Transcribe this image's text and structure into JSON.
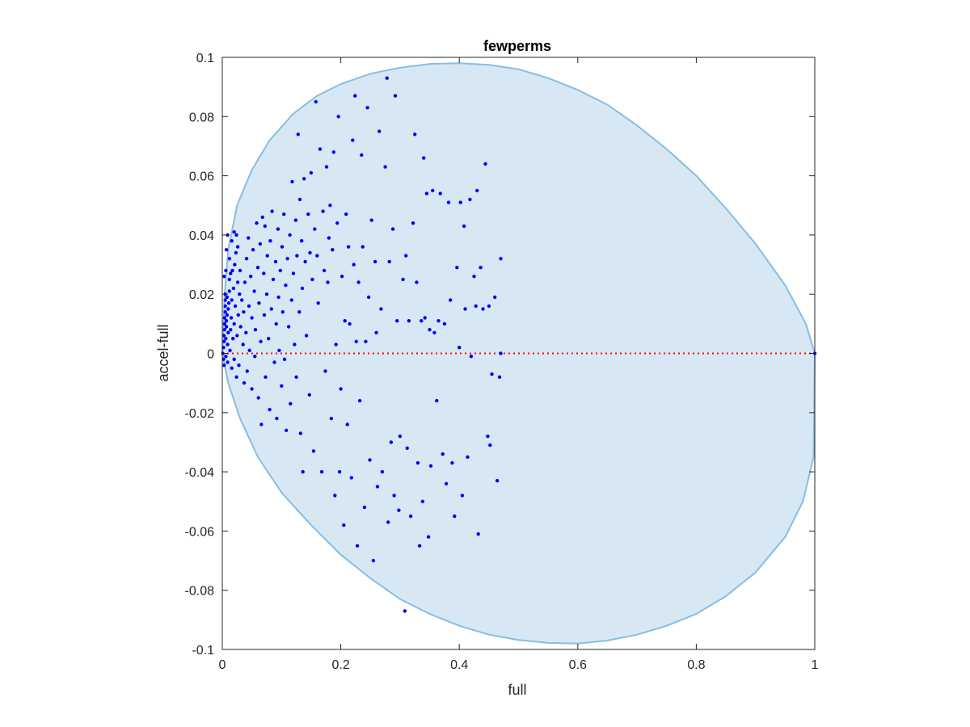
{
  "chart_data": {
    "type": "scatter",
    "title": "fewperms",
    "xlabel": "full",
    "ylabel": "accel-full",
    "xlim": [
      0,
      1
    ],
    "ylim": [
      -0.1,
      0.1
    ],
    "xticks": [
      0,
      0.2,
      0.4,
      0.6,
      0.8,
      1
    ],
    "xtick_labels": [
      "0",
      "0.2",
      "0.4",
      "0.6",
      "0.8",
      "1"
    ],
    "yticks": [
      -0.1,
      -0.08,
      -0.06,
      -0.04,
      -0.02,
      0,
      0.02,
      0.04,
      0.06,
      0.08,
      0.1
    ],
    "ytick_labels": [
      "-0.1",
      "-0.08",
      "-0.06",
      "-0.04",
      "-0.02",
      "0",
      "0.02",
      "0.04",
      "0.06",
      "0.08",
      "0.1"
    ],
    "grid": false,
    "colors": {
      "points": "#0000ff",
      "region_fill": "#d7e8f4",
      "region_edge": "#87bde2",
      "reference_line": "#ff0000",
      "axes": "#262626"
    },
    "reference_line": {
      "y": 0,
      "style": "dotted"
    },
    "region_boundary": [
      [
        0.0,
        0.0
      ],
      [
        0.004,
        0.02
      ],
      [
        0.01,
        0.035
      ],
      [
        0.025,
        0.05
      ],
      [
        0.05,
        0.062
      ],
      [
        0.08,
        0.072
      ],
      [
        0.12,
        0.081
      ],
      [
        0.16,
        0.087
      ],
      [
        0.2,
        0.091
      ],
      [
        0.25,
        0.0945
      ],
      [
        0.3,
        0.0965
      ],
      [
        0.35,
        0.0978
      ],
      [
        0.4,
        0.098
      ],
      [
        0.45,
        0.0975
      ],
      [
        0.5,
        0.096
      ],
      [
        0.55,
        0.093
      ],
      [
        0.6,
        0.089
      ],
      [
        0.65,
        0.084
      ],
      [
        0.7,
        0.077
      ],
      [
        0.75,
        0.069
      ],
      [
        0.8,
        0.06
      ],
      [
        0.85,
        0.049
      ],
      [
        0.9,
        0.037
      ],
      [
        0.95,
        0.023
      ],
      [
        0.985,
        0.01
      ],
      [
        1.0,
        0.0
      ],
      [
        0.998,
        -0.035
      ],
      [
        0.98,
        -0.05
      ],
      [
        0.95,
        -0.062
      ],
      [
        0.9,
        -0.074
      ],
      [
        0.85,
        -0.082
      ],
      [
        0.8,
        -0.088
      ],
      [
        0.75,
        -0.092
      ],
      [
        0.7,
        -0.095
      ],
      [
        0.65,
        -0.097
      ],
      [
        0.6,
        -0.098
      ],
      [
        0.55,
        -0.0978
      ],
      [
        0.5,
        -0.0968
      ],
      [
        0.45,
        -0.095
      ],
      [
        0.4,
        -0.092
      ],
      [
        0.35,
        -0.088
      ],
      [
        0.3,
        -0.083
      ],
      [
        0.25,
        -0.076
      ],
      [
        0.2,
        -0.068
      ],
      [
        0.15,
        -0.058
      ],
      [
        0.1,
        -0.047
      ],
      [
        0.06,
        -0.035
      ],
      [
        0.03,
        -0.022
      ],
      [
        0.01,
        -0.01
      ],
      [
        0.0,
        0.0
      ]
    ],
    "series": [
      {
        "points": [
          [
            0.001,
            0.0
          ],
          [
            0.002,
            0.002
          ],
          [
            0.002,
            -0.002
          ],
          [
            0.003,
            0.004
          ],
          [
            0.003,
            -0.004
          ],
          [
            0.003,
            0.006
          ],
          [
            0.004,
            0.008
          ],
          [
            0.004,
            0.01
          ],
          [
            0.004,
            0.012
          ],
          [
            0.005,
            0.014
          ],
          [
            0.005,
            0.016
          ],
          [
            0.005,
            0.018
          ],
          [
            0.005,
            0.02
          ],
          [
            0.006,
            0.005
          ],
          [
            0.006,
            -0.001
          ],
          [
            0.007,
            0.009
          ],
          [
            0.007,
            0.011
          ],
          [
            0.008,
            0.013
          ],
          [
            0.008,
            0.019
          ],
          [
            0.009,
            0.003
          ],
          [
            0.009,
            -0.003
          ],
          [
            0.01,
            0.007
          ],
          [
            0.01,
            0.015
          ],
          [
            0.011,
            0.017
          ],
          [
            0.012,
            0.021
          ],
          [
            0.012,
            0.025
          ],
          [
            0.013,
            0.001
          ],
          [
            0.014,
            0.008
          ],
          [
            0.015,
            0.012
          ],
          [
            0.016,
            -0.005
          ],
          [
            0.016,
            0.018
          ],
          [
            0.017,
            0.028
          ],
          [
            0.018,
            0.005
          ],
          [
            0.019,
            0.022
          ],
          [
            0.02,
            0.01
          ],
          [
            0.02,
            -0.002
          ],
          [
            0.021,
            0.03
          ],
          [
            0.022,
            0.016
          ],
          [
            0.023,
            0.034
          ],
          [
            0.024,
            -0.008
          ],
          [
            0.025,
            0.006
          ],
          [
            0.026,
            0.024
          ],
          [
            0.027,
            0.013
          ],
          [
            0.028,
            -0.004
          ],
          [
            0.029,
            0.02
          ],
          [
            0.003,
            0.026
          ],
          [
            0.006,
            0.028
          ],
          [
            0.007,
            0.035
          ],
          [
            0.009,
            0.04
          ],
          [
            0.012,
            0.032
          ],
          [
            0.014,
            0.027
          ],
          [
            0.016,
            0.038
          ],
          [
            0.02,
            0.041
          ],
          [
            0.024,
            0.04
          ],
          [
            0.026,
            0.036
          ],
          [
            0.03,
            0.028
          ],
          [
            0.031,
            0.009
          ],
          [
            0.033,
            0.018
          ],
          [
            0.035,
            0.003
          ],
          [
            0.036,
            0.014
          ],
          [
            0.037,
            -0.01
          ],
          [
            0.038,
            0.024
          ],
          [
            0.04,
            0.007
          ],
          [
            0.041,
            0.032
          ],
          [
            0.042,
            -0.006
          ],
          [
            0.044,
            0.039
          ],
          [
            0.045,
            0.016
          ],
          [
            0.046,
            0.001
          ],
          [
            0.048,
            0.026
          ],
          [
            0.05,
            -0.012
          ],
          [
            0.05,
            0.012
          ],
          [
            0.052,
            0.035
          ],
          [
            0.054,
            0.021
          ],
          [
            0.055,
            -0.001
          ],
          [
            0.056,
            0.008
          ],
          [
            0.058,
            0.044
          ],
          [
            0.06,
            0.029
          ],
          [
            0.061,
            -0.015
          ],
          [
            0.062,
            0.017
          ],
          [
            0.064,
            0.037
          ],
          [
            0.065,
            0.004
          ],
          [
            0.066,
            -0.024
          ],
          [
            0.068,
            0.046
          ],
          [
            0.07,
            0.027
          ],
          [
            0.071,
            0.013
          ],
          [
            0.072,
            0.043
          ],
          [
            0.073,
            -0.008
          ],
          [
            0.075,
            0.02
          ],
          [
            0.076,
            0.033
          ],
          [
            0.078,
            0.005
          ],
          [
            0.08,
            -0.019
          ],
          [
            0.081,
            0.038
          ],
          [
            0.083,
            0.015
          ],
          [
            0.084,
            0.048
          ],
          [
            0.086,
            0.025
          ],
          [
            0.088,
            -0.003
          ],
          [
            0.09,
            0.031
          ],
          [
            0.091,
            0.01
          ],
          [
            0.092,
            -0.022
          ],
          [
            0.094,
            0.042
          ],
          [
            0.095,
            0.019
          ],
          [
            0.096,
            0.001
          ],
          [
            0.098,
            0.028
          ],
          [
            0.1,
            -0.011
          ],
          [
            0.101,
            0.036
          ],
          [
            0.102,
            0.014
          ],
          [
            0.104,
            0.047
          ],
          [
            0.105,
            -0.002
          ],
          [
            0.107,
            0.023
          ],
          [
            0.108,
            -0.026
          ],
          [
            0.11,
            0.032
          ],
          [
            0.112,
            0.009
          ],
          [
            0.114,
            0.04
          ],
          [
            0.115,
            -0.017
          ],
          [
            0.117,
            0.018
          ],
          [
            0.118,
            0.058
          ],
          [
            0.12,
            0.027
          ],
          [
            0.122,
            0.003
          ],
          [
            0.124,
            0.045
          ],
          [
            0.125,
            -0.008
          ],
          [
            0.126,
            0.033
          ],
          [
            0.128,
            0.074
          ],
          [
            0.13,
            0.014
          ],
          [
            0.131,
            0.052
          ],
          [
            0.132,
            -0.027
          ],
          [
            0.134,
            0.038
          ],
          [
            0.135,
            0.022
          ],
          [
            0.136,
            -0.04
          ],
          [
            0.138,
            0.059
          ],
          [
            0.14,
            0.031
          ],
          [
            0.142,
            0.006
          ],
          [
            0.145,
            0.047
          ],
          [
            0.147,
            -0.014
          ],
          [
            0.148,
            0.034
          ],
          [
            0.15,
            0.061
          ],
          [
            0.152,
            0.025
          ],
          [
            0.154,
            -0.033
          ],
          [
            0.156,
            0.042
          ],
          [
            0.158,
            0.085
          ],
          [
            0.16,
            0.033
          ],
          [
            0.162,
            0.017
          ],
          [
            0.165,
            0.069
          ],
          [
            0.168,
            -0.04
          ],
          [
            0.17,
            0.048
          ],
          [
            0.172,
            0.028
          ],
          [
            0.174,
            -0.006
          ],
          [
            0.176,
            0.063
          ],
          [
            0.178,
            0.024
          ],
          [
            0.18,
            0.039
          ],
          [
            0.182,
            0.05
          ],
          [
            0.184,
            -0.022
          ],
          [
            0.186,
            0.035
          ],
          [
            0.188,
            0.068
          ],
          [
            0.19,
            -0.048
          ],
          [
            0.192,
            0.003
          ],
          [
            0.194,
            0.044
          ],
          [
            0.196,
            0.08
          ],
          [
            0.198,
            -0.04
          ],
          [
            0.2,
            -0.012
          ],
          [
            0.202,
            0.026
          ],
          [
            0.205,
            -0.058
          ],
          [
            0.207,
            0.011
          ],
          [
            0.209,
            0.047
          ],
          [
            0.211,
            -0.024
          ],
          [
            0.213,
            0.036
          ],
          [
            0.215,
            0.01
          ],
          [
            0.218,
            -0.042
          ],
          [
            0.22,
            0.072
          ],
          [
            0.222,
            0.03
          ],
          [
            0.224,
            0.087
          ],
          [
            0.226,
            0.004
          ],
          [
            0.228,
            -0.065
          ],
          [
            0.23,
            0.024
          ],
          [
            0.232,
            -0.016
          ],
          [
            0.235,
            0.067
          ],
          [
            0.237,
            0.036
          ],
          [
            0.24,
            -0.052
          ],
          [
            0.242,
            0.004
          ],
          [
            0.245,
            0.083
          ],
          [
            0.247,
            0.019
          ],
          [
            0.249,
            -0.036
          ],
          [
            0.252,
            0.045
          ],
          [
            0.255,
            -0.07
          ],
          [
            0.258,
            0.031
          ],
          [
            0.26,
            0.007
          ],
          [
            0.262,
            -0.045
          ],
          [
            0.265,
            0.075
          ],
          [
            0.268,
            0.015
          ],
          [
            0.27,
            -0.04
          ],
          [
            0.275,
            0.063
          ],
          [
            0.278,
            0.093
          ],
          [
            0.28,
            -0.057
          ],
          [
            0.282,
            0.031
          ],
          [
            0.285,
            -0.03
          ],
          [
            0.288,
            0.042
          ],
          [
            0.29,
            -0.048
          ],
          [
            0.292,
            0.087
          ],
          [
            0.295,
            0.011
          ],
          [
            0.298,
            -0.053
          ],
          [
            0.3,
            -0.028
          ],
          [
            0.305,
            0.025
          ],
          [
            0.308,
            -0.087
          ],
          [
            0.31,
            0.033
          ],
          [
            0.312,
            -0.032
          ],
          [
            0.315,
            0.011
          ],
          [
            0.318,
            -0.055
          ],
          [
            0.322,
            0.044
          ],
          [
            0.325,
            0.074
          ],
          [
            0.328,
            0.024
          ],
          [
            0.33,
            -0.037
          ],
          [
            0.333,
            -0.065
          ],
          [
            0.336,
            0.011
          ],
          [
            0.338,
            -0.05
          ],
          [
            0.34,
            0.066
          ],
          [
            0.342,
            0.012
          ],
          [
            0.345,
            0.054
          ],
          [
            0.348,
            -0.062
          ],
          [
            0.35,
            0.008
          ],
          [
            0.352,
            -0.038
          ],
          [
            0.355,
            0.055
          ],
          [
            0.358,
            0.007
          ],
          [
            0.362,
            -0.016
          ],
          [
            0.365,
            0.011
          ],
          [
            0.368,
            0.054
          ],
          [
            0.372,
            -0.034
          ],
          [
            0.375,
            0.01
          ],
          [
            0.378,
            -0.044
          ],
          [
            0.382,
            0.051
          ],
          [
            0.385,
            0.018
          ],
          [
            0.388,
            -0.037
          ],
          [
            0.392,
            -0.055
          ],
          [
            0.396,
            0.029
          ],
          [
            0.4,
            0.002
          ],
          [
            0.402,
            0.051
          ],
          [
            0.405,
            -0.048
          ],
          [
            0.408,
            0.043
          ],
          [
            0.41,
            0.015
          ],
          [
            0.414,
            -0.035
          ],
          [
            0.418,
            0.052
          ],
          [
            0.42,
            -0.001
          ],
          [
            0.425,
            0.026
          ],
          [
            0.428,
            0.016
          ],
          [
            0.43,
            0.055
          ],
          [
            0.432,
            -0.061
          ],
          [
            0.436,
            0.029
          ],
          [
            0.44,
            0.015
          ],
          [
            0.444,
            0.064
          ],
          [
            0.448,
            -0.028
          ],
          [
            0.45,
            0.016
          ],
          [
            0.452,
            -0.031
          ],
          [
            0.455,
            -0.007
          ],
          [
            0.46,
            0.019
          ],
          [
            0.464,
            -0.043
          ],
          [
            0.468,
            -0.008
          ],
          [
            0.47,
            0.032
          ],
          [
            0.47,
            0.0
          ],
          [
            1.0,
            0.0
          ]
        ]
      }
    ]
  }
}
